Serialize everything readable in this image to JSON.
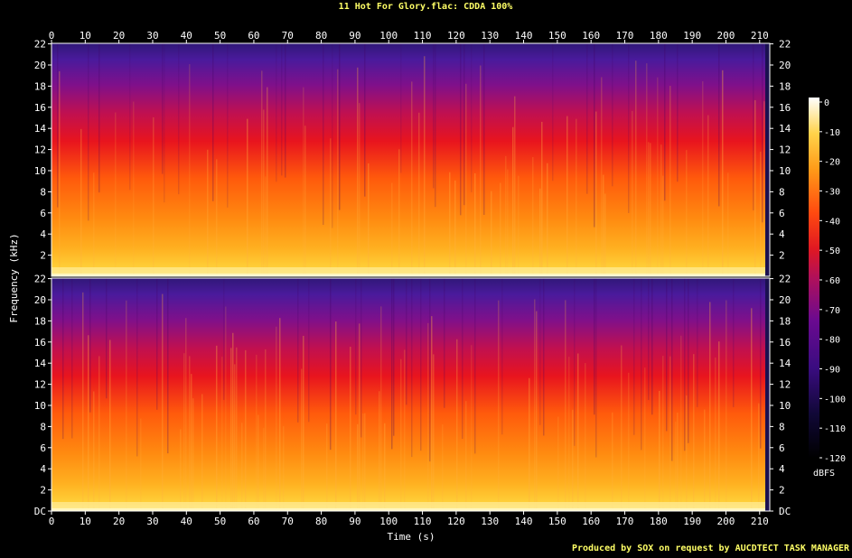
{
  "title": "11 Hot For Glory.flac: CDDA 100%",
  "footer": "Produced by SOX on request by AUCDTECT TASK MANAGER",
  "colors": {
    "title": "#ffff66",
    "axis": "#ffffff",
    "background": "#000000"
  },
  "chart_data": {
    "type": "heatmap",
    "title": "11 Hot For Glory.flac: CDDA 100%",
    "xlabel": "Time (s)",
    "ylabel": "Frequency (kHz)",
    "xlim": [
      0,
      213
    ],
    "ylim": [
      0,
      22.05
    ],
    "x_ticks": [
      "0",
      "10",
      "20",
      "30",
      "40",
      "50",
      "60",
      "70",
      "80",
      "90",
      "100",
      "110",
      "120",
      "130",
      "140",
      "150",
      "160",
      "170",
      "180",
      "190",
      "200",
      "210"
    ],
    "y_ticks": [
      "DC",
      "2",
      "4",
      "6",
      "8",
      "10",
      "12",
      "14",
      "16",
      "18",
      "20",
      "22"
    ],
    "channels": 2,
    "colorbar": {
      "label": "dBFS",
      "ticks": [
        "0",
        "-10",
        "-20",
        "-30",
        "-40",
        "-50",
        "-60",
        "-70",
        "-80",
        "-90",
        "-100",
        "-110",
        "-120"
      ],
      "range": [
        -120,
        0
      ]
    }
  }
}
